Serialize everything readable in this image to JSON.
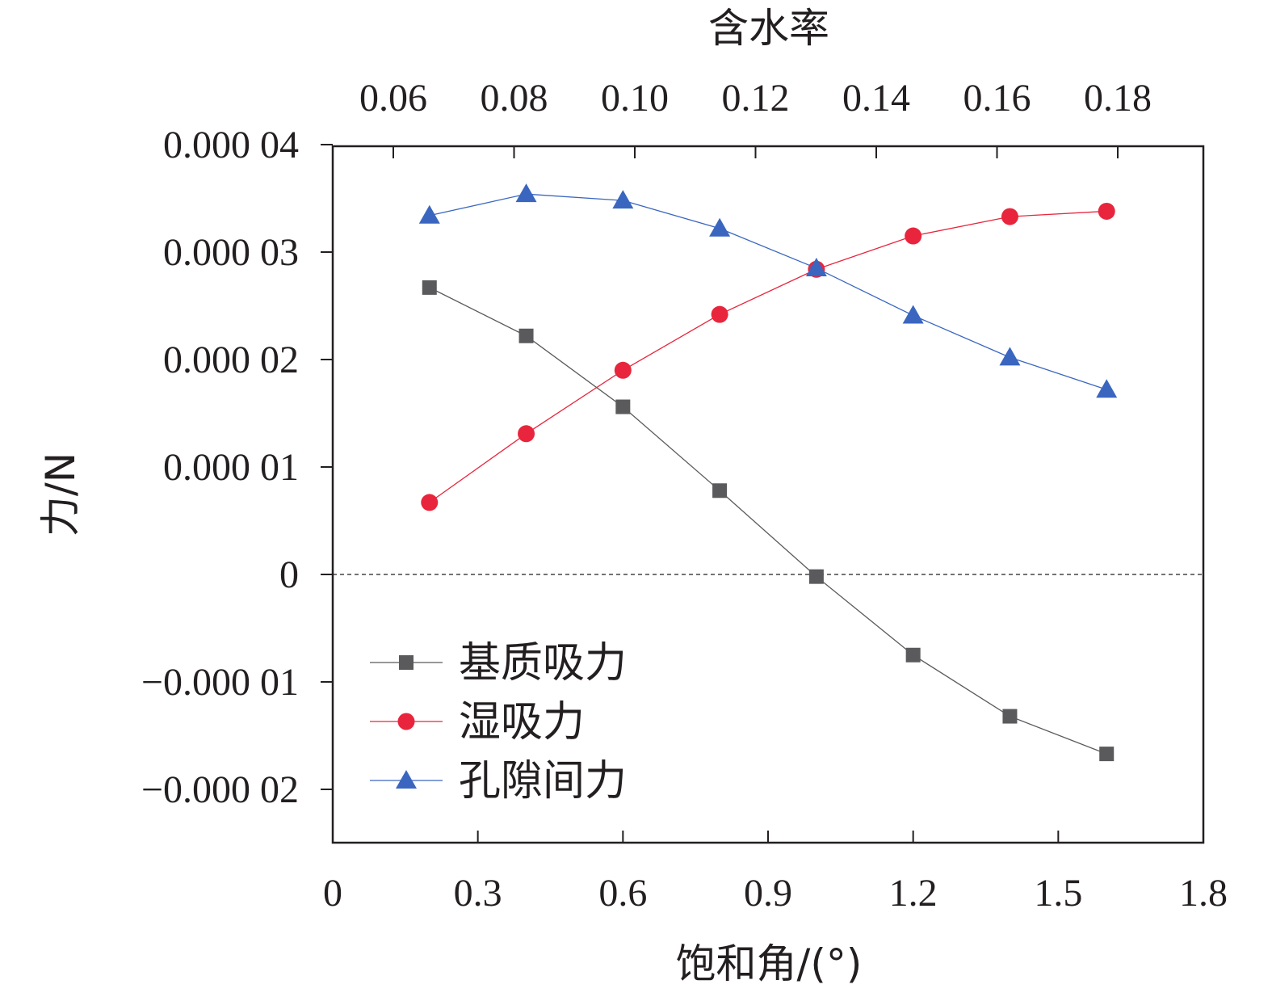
{
  "chart_data": {
    "type": "line",
    "x": [
      0.2,
      0.4,
      0.6,
      0.8,
      1.0,
      1.2,
      1.4,
      1.6
    ],
    "xlabel": "饱和角/(°)",
    "x_ticks": [
      "0",
      "0.3",
      "0.6",
      "0.9",
      "1.2",
      "1.5",
      "1.8"
    ],
    "xlim": [
      0,
      1.8
    ],
    "x2label": "含水率",
    "x2_ticks": [
      "0.06",
      "0.08",
      "0.10",
      "0.12",
      "0.14",
      "0.16",
      "0.18"
    ],
    "ylabel": "力/N",
    "y_ticks": [
      "0.000 04",
      "0.000 03",
      "0.000 02",
      "0.000 01",
      "0",
      "−0.000 01",
      "−0.000 02"
    ],
    "ylim": [
      -2.5e-05,
      4e-05
    ],
    "zero_line": "dashed",
    "legend_position": "bottom-left",
    "series": [
      {
        "name": "基质吸力",
        "marker": "square",
        "color": "#5a5a5c",
        "values": [
          2.67e-05,
          2.22e-05,
          1.56e-05,
          7.8e-06,
          -2e-07,
          -7.5e-06,
          -1.32e-05,
          -1.67e-05
        ]
      },
      {
        "name": "湿吸力",
        "marker": "circle",
        "color": "#e8253c",
        "values": [
          6.7e-06,
          1.31e-05,
          1.9e-05,
          2.42e-05,
          2.84e-05,
          3.15e-05,
          3.33e-05,
          3.38e-05
        ]
      },
      {
        "name": "孔隙间力",
        "marker": "triangle",
        "color": "#3a66c0",
        "values": [
          3.34e-05,
          3.54e-05,
          3.48e-05,
          3.22e-05,
          2.85e-05,
          2.41e-05,
          2.02e-05,
          1.72e-05
        ]
      }
    ]
  }
}
